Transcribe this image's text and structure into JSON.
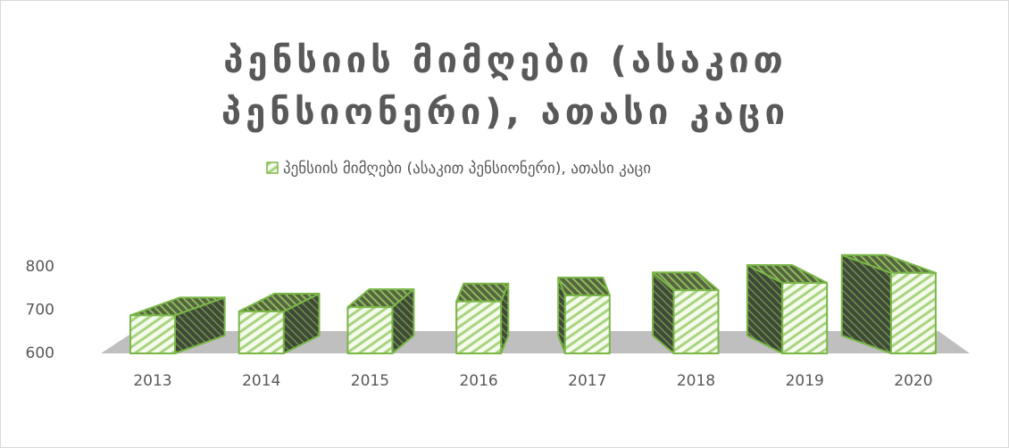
{
  "chart_data": {
    "type": "bar3d",
    "title": "პენსიის მიმღები (ასაკით პენსიონერი), ათასი კაცი",
    "categories": [
      "2013",
      "2014",
      "2015",
      "2016",
      "2017",
      "2018",
      "2019",
      "2020"
    ],
    "series": [
      {
        "name": "პენსიის მიმღები (ასაკით პენსიონერი), ათასი კაცი",
        "color": "#7ab648",
        "values": [
          688,
          697,
          707,
          720,
          734,
          746,
          763,
          786
        ]
      }
    ],
    "ylim": [
      600,
      800
    ],
    "yticks": [
      600,
      700,
      800
    ],
    "legend": "top"
  }
}
